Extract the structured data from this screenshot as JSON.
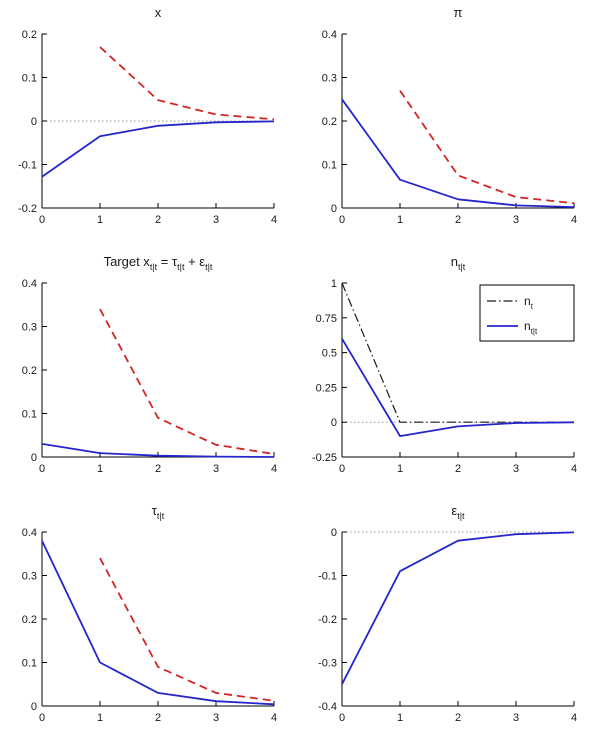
{
  "colors": {
    "blue": "#2525cc",
    "red": "#d42525",
    "black": "#1a1a1a",
    "axis": "#000000",
    "zero_line": "#999999",
    "background": "#ffffff"
  },
  "chart_data": [
    {
      "type": "line",
      "name": "x",
      "title": [
        {
          "t": "x"
        }
      ],
      "xlim": [
        0,
        4
      ],
      "ylim": [
        -0.2,
        0.2
      ],
      "xticks": [
        0,
        1,
        2,
        3,
        4
      ],
      "xtick_labels": [
        "0",
        "1",
        "2",
        "3",
        "4"
      ],
      "yticks": [
        -0.2,
        -0.1,
        0,
        0.1,
        0.2
      ],
      "ytick_labels": [
        "-0.2",
        "-0.1",
        "0",
        "0.1",
        "0.2"
      ],
      "zero_line": true,
      "grid": false,
      "series": [
        {
          "name": "x-actual",
          "color": "blue",
          "style": "solid",
          "width": 1.8,
          "x": [
            0,
            1,
            2,
            3,
            4
          ],
          "y": [
            -0.128,
            -0.035,
            -0.011,
            -0.003,
            -0.001
          ]
        },
        {
          "name": "x-target",
          "color": "red",
          "style": "dashed",
          "width": 1.8,
          "x": [
            1,
            2,
            3,
            4
          ],
          "y": [
            0.17,
            0.048,
            0.015,
            0.004
          ]
        }
      ]
    },
    {
      "type": "line",
      "name": "pi",
      "title": [
        {
          "t": "π"
        }
      ],
      "xlim": [
        0,
        4
      ],
      "ylim": [
        0,
        0.4
      ],
      "xticks": [
        0,
        1,
        2,
        3,
        4
      ],
      "xtick_labels": [
        "0",
        "1",
        "2",
        "3",
        "4"
      ],
      "yticks": [
        0,
        0.1,
        0.2,
        0.3,
        0.4
      ],
      "ytick_labels": [
        "0",
        "0.1",
        "0.2",
        "0.3",
        "0.4"
      ],
      "zero_line": false,
      "grid": false,
      "series": [
        {
          "name": "pi-solid",
          "color": "blue",
          "style": "solid",
          "width": 1.8,
          "x": [
            0,
            1,
            2,
            3,
            4
          ],
          "y": [
            0.25,
            0.065,
            0.02,
            0.006,
            0.002
          ]
        },
        {
          "name": "pi-dashed",
          "color": "red",
          "style": "dashed",
          "width": 1.8,
          "x": [
            1,
            2,
            3,
            4
          ],
          "y": [
            0.27,
            0.075,
            0.025,
            0.011
          ]
        }
      ]
    },
    {
      "type": "line",
      "name": "target-x",
      "title": [
        {
          "t": "Target x"
        },
        {
          "t": "t|t",
          "sub": true
        },
        {
          "t": " = τ"
        },
        {
          "t": "t|t",
          "sub": true
        },
        {
          "t": " + ε"
        },
        {
          "t": "t|t",
          "sub": true
        }
      ],
      "xlim": [
        0,
        4
      ],
      "ylim": [
        0,
        0.4
      ],
      "xticks": [
        0,
        1,
        2,
        3,
        4
      ],
      "xtick_labels": [
        "0",
        "1",
        "2",
        "3",
        "4"
      ],
      "yticks": [
        0,
        0.1,
        0.2,
        0.3,
        0.4
      ],
      "ytick_labels": [
        "0",
        "0.1",
        "0.2",
        "0.3",
        "0.4"
      ],
      "zero_line": false,
      "grid": false,
      "series": [
        {
          "name": "target-solid",
          "color": "blue",
          "style": "solid",
          "width": 1.8,
          "x": [
            0,
            1,
            2,
            3,
            4
          ],
          "y": [
            0.03,
            0.009,
            0.003,
            0.001,
            0.0
          ]
        },
        {
          "name": "target-dashed",
          "color": "red",
          "style": "dashed",
          "width": 1.8,
          "x": [
            1,
            2,
            3,
            4
          ],
          "y": [
            0.34,
            0.09,
            0.028,
            0.007
          ]
        }
      ]
    },
    {
      "type": "line",
      "name": "n",
      "title": [
        {
          "t": "n"
        },
        {
          "t": "t|t",
          "sub": true
        }
      ],
      "xlim": [
        0,
        4
      ],
      "ylim": [
        -0.25,
        1
      ],
      "xticks": [
        0,
        1,
        2,
        3,
        4
      ],
      "xtick_labels": [
        "0",
        "1",
        "2",
        "3",
        "4"
      ],
      "yticks": [
        -0.25,
        0,
        0.25,
        0.5,
        0.75,
        1
      ],
      "ytick_labels": [
        "-0.25",
        "0",
        "0.25",
        "0.5",
        "0.75",
        "1"
      ],
      "zero_line": true,
      "grid": false,
      "series": [
        {
          "name": "n-t",
          "color": "black",
          "style": "dashdot",
          "width": 1.2,
          "x": [
            0,
            1,
            2,
            3,
            4
          ],
          "y": [
            1,
            0,
            0,
            0,
            0
          ]
        },
        {
          "name": "n-tt",
          "color": "blue",
          "style": "solid",
          "width": 1.8,
          "x": [
            0,
            1,
            2,
            3,
            4
          ],
          "y": [
            0.6,
            -0.1,
            -0.03,
            -0.006,
            -0.001
          ]
        }
      ],
      "legend": {
        "position": "top-right",
        "entries": [
          {
            "label": [
              {
                "t": "n"
              },
              {
                "t": "t",
                "sub": true
              }
            ],
            "series": 0
          },
          {
            "label": [
              {
                "t": "n"
              },
              {
                "t": "t|t",
                "sub": true
              }
            ],
            "series": 1
          }
        ]
      }
    },
    {
      "type": "line",
      "name": "tau",
      "title": [
        {
          "t": "τ"
        },
        {
          "t": "t|t",
          "sub": true
        }
      ],
      "xlim": [
        0,
        4
      ],
      "ylim": [
        0,
        0.4
      ],
      "xticks": [
        0,
        1,
        2,
        3,
        4
      ],
      "xtick_labels": [
        "0",
        "1",
        "2",
        "3",
        "4"
      ],
      "yticks": [
        0,
        0.1,
        0.2,
        0.3,
        0.4
      ],
      "ytick_labels": [
        "0",
        "0.1",
        "0.2",
        "0.3",
        "0.4"
      ],
      "zero_line": false,
      "grid": false,
      "series": [
        {
          "name": "tau-solid",
          "color": "blue",
          "style": "solid",
          "width": 1.8,
          "x": [
            0,
            1,
            2,
            3,
            4
          ],
          "y": [
            0.38,
            0.1,
            0.03,
            0.011,
            0.004
          ]
        },
        {
          "name": "tau-dashed",
          "color": "red",
          "style": "dashed",
          "width": 1.8,
          "x": [
            1,
            2,
            3,
            4
          ],
          "y": [
            0.34,
            0.09,
            0.03,
            0.012
          ]
        }
      ]
    },
    {
      "type": "line",
      "name": "eps",
      "title": [
        {
          "t": "ε"
        },
        {
          "t": "t|t",
          "sub": true
        }
      ],
      "xlim": [
        0,
        4
      ],
      "ylim": [
        -0.4,
        0
      ],
      "xticks": [
        0,
        1,
        2,
        3,
        4
      ],
      "xtick_labels": [
        "0",
        "1",
        "2",
        "3",
        "4"
      ],
      "yticks": [
        -0.4,
        -0.3,
        -0.2,
        -0.1,
        0
      ],
      "ytick_labels": [
        "-0.4",
        "-0.3",
        "-0.2",
        "-0.1",
        "0"
      ],
      "zero_line": true,
      "grid": false,
      "series": [
        {
          "name": "eps-solid",
          "color": "blue",
          "style": "solid",
          "width": 1.8,
          "x": [
            0,
            1,
            2,
            3,
            4
          ],
          "y": [
            -0.35,
            -0.09,
            -0.02,
            -0.005,
            -0.001
          ]
        }
      ]
    }
  ]
}
